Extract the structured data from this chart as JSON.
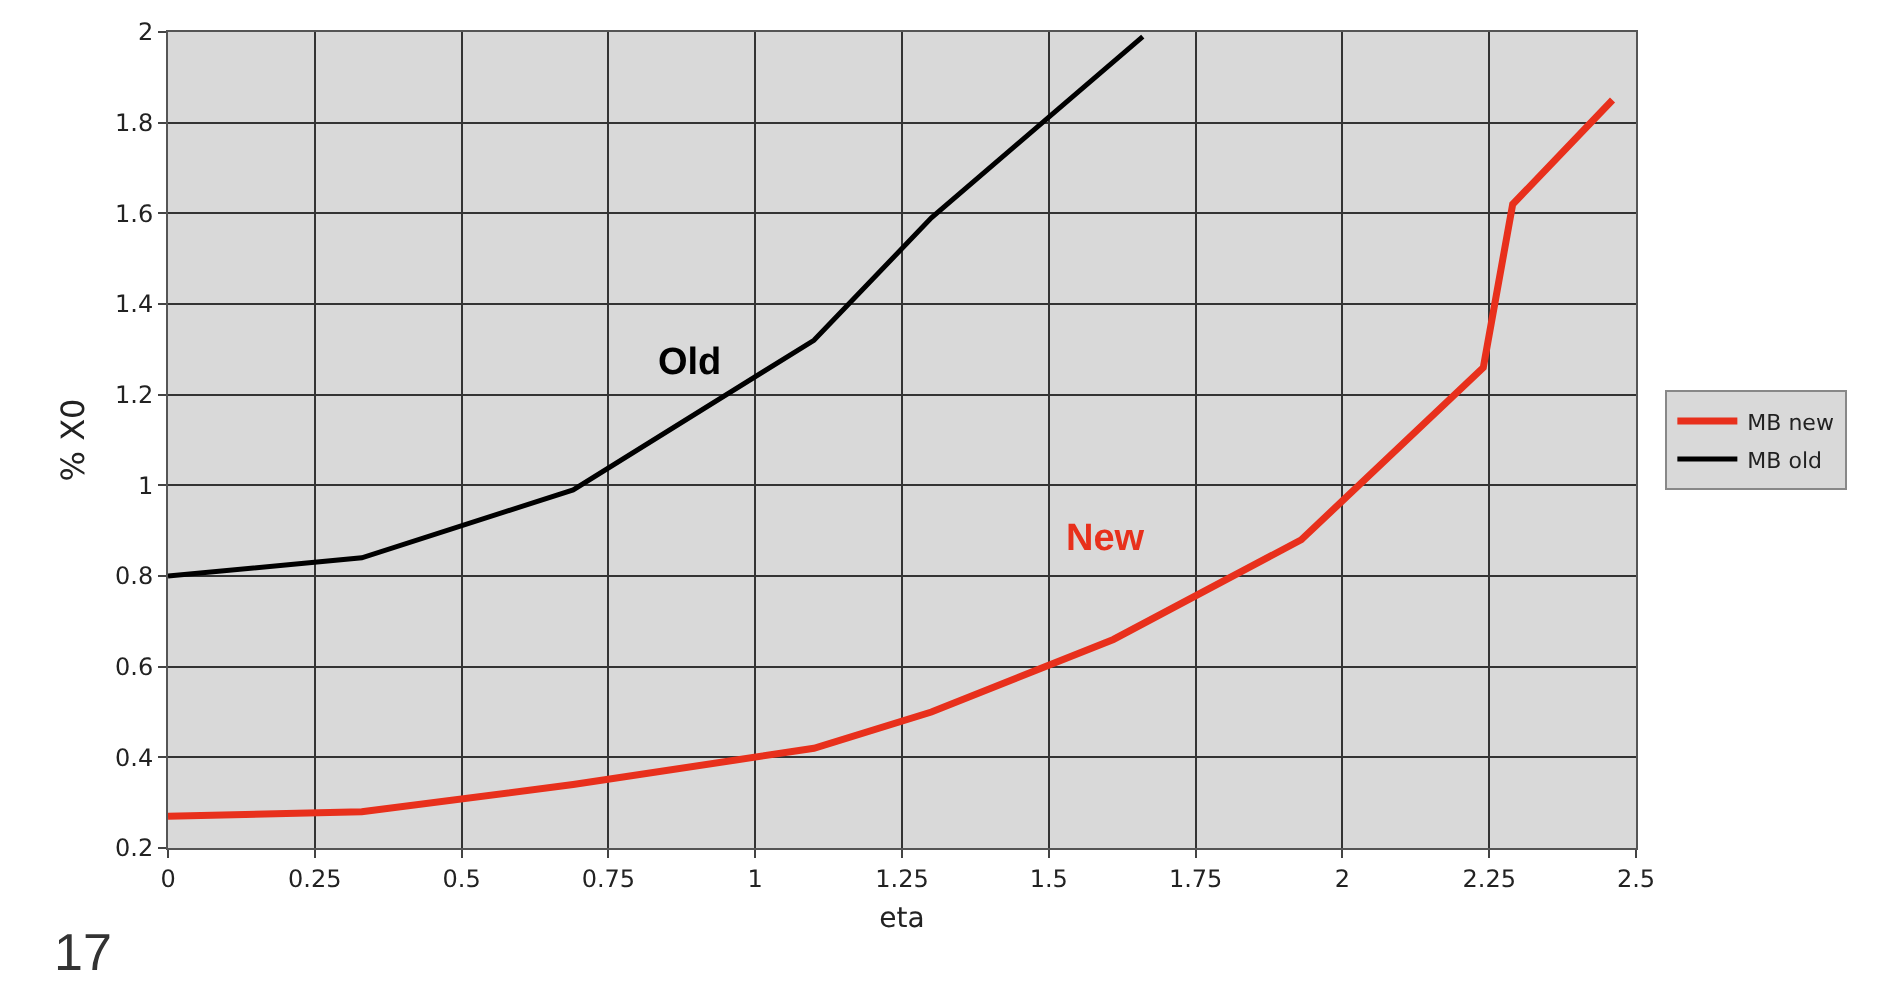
{
  "chart_data": {
    "type": "line",
    "xlabel": "eta",
    "ylabel": "% X0",
    "series": [
      {
        "name": "MB new",
        "color": "#e8301c",
        "x": [
          0,
          0.33,
          0.69,
          1.1,
          1.3,
          1.61,
          1.93,
          2.24,
          2.29,
          2.46
        ],
        "values": [
          0.27,
          0.28,
          0.34,
          0.42,
          0.5,
          0.66,
          0.88,
          1.26,
          1.62,
          1.85
        ]
      },
      {
        "name": "MB old",
        "color": "#000000",
        "x": [
          0,
          0.33,
          0.69,
          1.1,
          1.3,
          1.66
        ],
        "values": [
          0.8,
          0.84,
          0.99,
          1.32,
          1.59,
          1.99
        ]
      }
    ],
    "xlim": [
      0,
      2.5
    ],
    "xticks": [
      0,
      0.25,
      0.5,
      0.75,
      1,
      1.25,
      1.5,
      1.75,
      2,
      2.25,
      2.5
    ],
    "ylim": [
      0.2,
      2
    ],
    "yticks": [
      0.2,
      0.4,
      0.6,
      0.8,
      1,
      1.2,
      1.4,
      1.6,
      1.8,
      2
    ],
    "annotations": [
      "Old",
      "New",
      "17"
    ],
    "grid": true,
    "legend": "right",
    "marker": "none",
    "line_style": "solid"
  }
}
